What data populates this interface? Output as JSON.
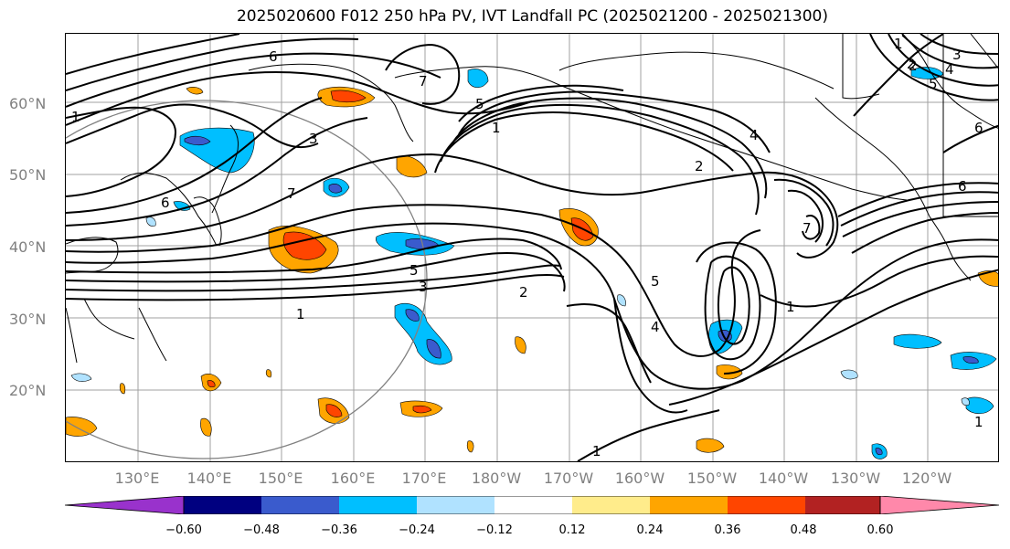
{
  "title": "2025020600 F012 250 hPa PV, IVT Landfall PC (2025021200 - 2025021300)",
  "lat_labels": [
    "60°N",
    "50°N",
    "40°N",
    "30°N",
    "20°N"
  ],
  "lon_labels": [
    "130°E",
    "140°E",
    "150°E",
    "160°E",
    "170°E",
    "180°W",
    "170°W",
    "160°W",
    "150°W",
    "140°W",
    "130°W",
    "120°W"
  ],
  "colorbar": {
    "ticks": [
      "−0.60",
      "−0.48",
      "−0.36",
      "−0.24",
      "−0.12",
      "0.12",
      "0.24",
      "0.36",
      "0.48",
      "0.60"
    ],
    "colors": [
      "#9932cc",
      "#000080",
      "#3a5bcd",
      "#00bfff",
      "#b0e2ff",
      "#ffffff",
      "#ffec8b",
      "#ffa500",
      "#ff4500",
      "#b22222",
      "#ff88aa"
    ]
  },
  "contour_labels": [
    "6",
    "7",
    "5",
    "1",
    "2",
    "3",
    "4",
    "6",
    "1",
    "7",
    "5",
    "3",
    "1",
    "2",
    "1",
    "5",
    "4",
    "7",
    "2",
    "6",
    "1",
    "2",
    "1",
    "3",
    "4",
    "5",
    "6",
    "1"
  ],
  "colors": {
    "contour": "#000000",
    "grid": "#a0a0a0",
    "coast": "#000000",
    "circle": "#808080"
  }
}
